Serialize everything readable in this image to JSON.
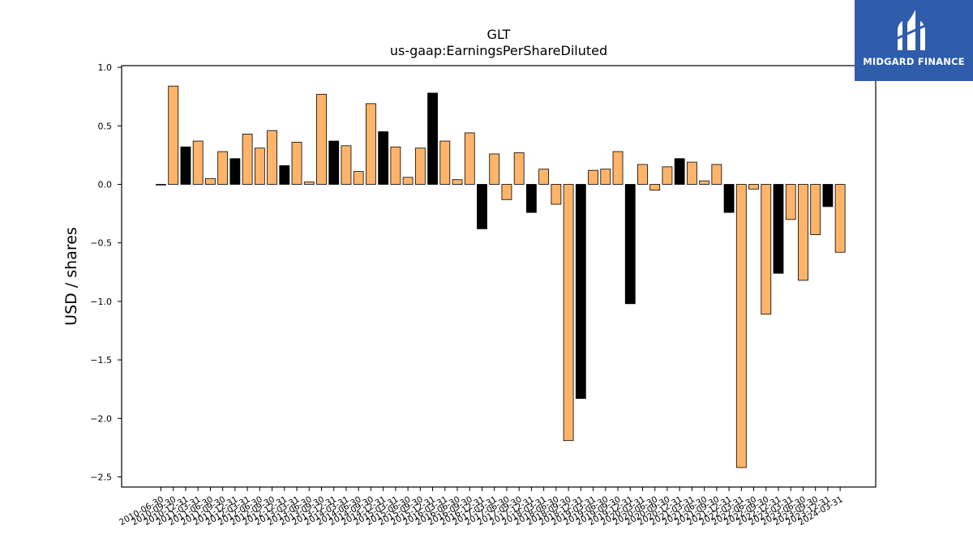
{
  "brand": {
    "name": "MIDGARD FINANCE",
    "bg_color": "#2f5cab"
  },
  "colors": {
    "annual": "#000000",
    "quarterly": "#ffb469",
    "edge": "#000000"
  },
  "chart_data": {
    "type": "bar",
    "title": "GLT",
    "subtitle": "us-gaap:EarningsPerShareDiluted",
    "ylabel": "USD / shares",
    "xlabel": "",
    "ylim": [
      -2.6,
      1.05
    ],
    "yticks": [
      1.0,
      0.5,
      0.0,
      -0.5,
      -1.0,
      -1.5,
      -2.0,
      -2.5
    ],
    "ytick_labels": [
      "1.0",
      "0.5",
      "0.0",
      "−0.5",
      "−1.0",
      "−1.5",
      "−2.0",
      "−2.5"
    ],
    "grid": false,
    "categories": [
      "2010-06-30",
      "2010-09-30",
      "2010-12-31",
      "2011-03-31",
      "2011-06-30",
      "2011-09-30",
      "2011-12-31",
      "2012-03-31",
      "2012-06-30",
      "2012-09-30",
      "2012-12-31",
      "2013-03-31",
      "2013-06-30",
      "2013-09-30",
      "2013-12-31",
      "2014-03-31",
      "2014-06-30",
      "2014-09-30",
      "2014-12-31",
      "2015-03-31",
      "2015-06-30",
      "2015-09-30",
      "2015-12-31",
      "2016-03-31",
      "2016-06-30",
      "2016-09-30",
      "2016-12-31",
      "2017-03-31",
      "2017-06-30",
      "2017-09-30",
      "2017-12-31",
      "2018-03-31",
      "2018-06-30",
      "2018-09-30",
      "2018-12-31",
      "2019-03-31",
      "2019-06-30",
      "2019-09-30",
      "2019-12-31",
      "2020-03-31",
      "2020-06-30",
      "2020-09-30",
      "2020-12-31",
      "2021-03-31",
      "2021-06-30",
      "2021-09-30",
      "2021-12-31",
      "2022-03-31",
      "2022-06-30",
      "2022-09-30",
      "2022-12-31",
      "2023-03-31",
      "2023-06-30",
      "2023-09-30",
      "2023-12-31",
      "2024-03-31"
    ],
    "values": [
      0.0,
      0.84,
      0.32,
      0.37,
      0.05,
      0.28,
      0.22,
      0.43,
      0.31,
      0.46,
      0.16,
      0.36,
      0.02,
      0.77,
      0.37,
      0.33,
      0.11,
      0.69,
      0.45,
      0.32,
      0.06,
      0.31,
      0.78,
      0.37,
      0.04,
      0.44,
      -0.38,
      0.26,
      -0.13,
      0.27,
      -0.24,
      0.13,
      -0.17,
      -2.19,
      -1.83,
      0.12,
      0.13,
      0.28,
      -1.02,
      0.17,
      -0.05,
      0.15,
      0.22,
      0.19,
      0.03,
      0.17,
      -0.24,
      -2.42,
      -0.04,
      -1.11,
      -0.76,
      -0.3,
      -0.82,
      -0.43,
      -0.19,
      -0.58
    ],
    "annual_flags": [
      1,
      0,
      1,
      0,
      0,
      0,
      1,
      0,
      0,
      0,
      1,
      0,
      0,
      0,
      1,
      0,
      0,
      0,
      1,
      0,
      0,
      0,
      1,
      0,
      0,
      0,
      1,
      0,
      0,
      0,
      1,
      0,
      0,
      0,
      1,
      0,
      0,
      0,
      1,
      0,
      0,
      0,
      1,
      0,
      0,
      0,
      1,
      0,
      0,
      0,
      1,
      0,
      0,
      0,
      1,
      0
    ]
  }
}
